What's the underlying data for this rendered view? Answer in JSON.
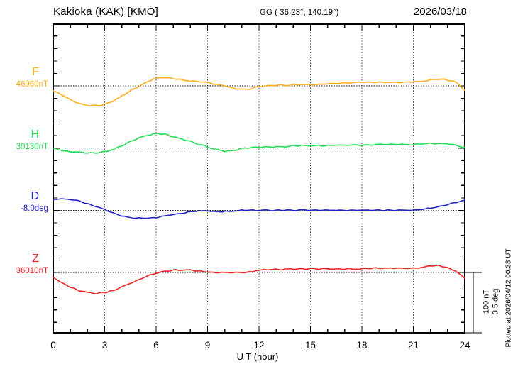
{
  "header": {
    "station": "Kakioka (KAK)  [KMO]",
    "coords": "GG ( 36.23°, 140.19°)",
    "date": "2026/03/18"
  },
  "footer_note": "Plotted at 2026/04/12 00:38 UT",
  "scale_bar": {
    "line1": "100 nT",
    "line2": "0.5 deg"
  },
  "chart_data": {
    "type": "line",
    "title": "Kakioka (KAK) [KMO] magnetogram 2026/03/18",
    "xlabel": "U T (hour)",
    "x_ticks": [
      0,
      3,
      6,
      9,
      12,
      15,
      18,
      21,
      24
    ],
    "x_minor_tick_step_hours": 1,
    "x_range": [
      0,
      24
    ],
    "x_start": 0,
    "x_step": 0.5,
    "grid": "dotted vertical lines every 3 hours; dotted horizontal baseline per channel",
    "scale": {
      "nT_per_bar": 100,
      "deg_per_bar": 0.5
    },
    "series": [
      {
        "name": "F",
        "base_label": "46960nT",
        "base": 46960,
        "unit": "nT",
        "color": "#FFAE19",
        "offsets": [
          -8,
          -15,
          -23,
          -29,
          -32,
          -33,
          -31,
          -25,
          -17,
          -8,
          -1,
          7,
          13,
          14,
          12,
          10,
          8,
          7,
          6,
          2,
          0,
          -4,
          -6,
          -5,
          -1,
          0,
          1,
          1,
          2,
          2,
          2,
          2,
          4,
          4,
          5,
          5,
          6,
          6,
          6,
          6,
          6,
          6,
          7,
          7,
          10,
          11,
          10,
          6,
          -7
        ]
      },
      {
        "name": "H",
        "base_label": "30130nT",
        "base": 30130,
        "unit": "nT",
        "color": "#22DD55",
        "offsets": [
          0,
          -4,
          -6,
          -7,
          -8,
          -8,
          -6,
          -2,
          4,
          11,
          17,
          21,
          24,
          23,
          19,
          15,
          11,
          6,
          2,
          -2,
          -5,
          -4,
          -1,
          1,
          1,
          2,
          2,
          2,
          4,
          4,
          4,
          4,
          4,
          5,
          5,
          5,
          5,
          5,
          6,
          6,
          6,
          6,
          6,
          7,
          8,
          7,
          7,
          5,
          1
        ]
      },
      {
        "name": "D",
        "base_label": "-8.0deg",
        "base": -8.0,
        "unit": "deg",
        "color": "#2222CC",
        "offsets": [
          0.089,
          0.095,
          0.089,
          0.077,
          0.054,
          0.03,
          0.006,
          -0.024,
          -0.048,
          -0.06,
          -0.065,
          -0.065,
          -0.06,
          -0.048,
          -0.036,
          -0.024,
          -0.012,
          -0.006,
          -0.006,
          -0.012,
          -0.012,
          -0.006,
          0,
          0,
          0,
          0,
          0,
          0,
          0,
          0,
          0,
          0,
          0,
          0,
          0,
          0,
          0,
          0,
          0,
          0,
          0,
          0,
          0,
          0.006,
          0.018,
          0.03,
          0.048,
          0.065,
          0.083
        ]
      },
      {
        "name": "Z",
        "base_label": "36010nT",
        "base": 36010,
        "unit": "nT",
        "color": "#EE2222",
        "offsets": [
          -8,
          -17,
          -24,
          -30,
          -33,
          -35,
          -33,
          -30,
          -24,
          -18,
          -12,
          -6,
          -1,
          2,
          4,
          4,
          4,
          2,
          1,
          0,
          0,
          0,
          0,
          1,
          4,
          5,
          5,
          5,
          6,
          6,
          6,
          6,
          6,
          6,
          6,
          6,
          6,
          7,
          7,
          7,
          7,
          7,
          7,
          8,
          11,
          11,
          8,
          2,
          -10
        ]
      }
    ]
  }
}
